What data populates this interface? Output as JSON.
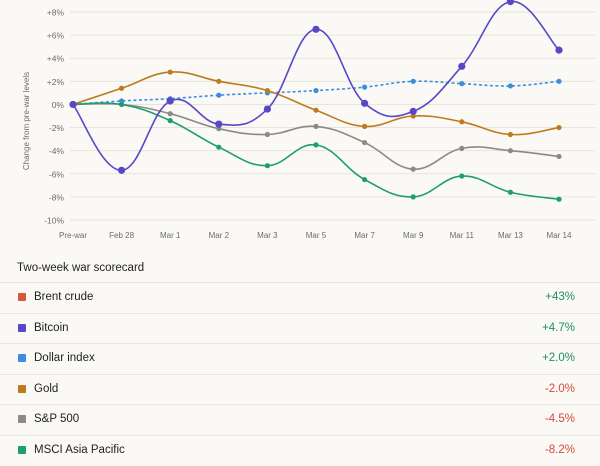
{
  "chart_data": {
    "type": "line",
    "ylabel": "Change from pre-war levels",
    "ylim": [
      -10,
      8
    ],
    "yticks": [
      8,
      6,
      4,
      2,
      0,
      -2,
      -4,
      -6,
      -8,
      -10
    ],
    "ytick_labels": [
      "+8%",
      "+6%",
      "+4%",
      "+2%",
      "0%",
      "-2%",
      "-4%",
      "-6%",
      "-8%",
      "-10%"
    ],
    "categories": [
      "Pre-war",
      "Feb 28",
      "Mar 1",
      "Mar 2",
      "Mar 3",
      "Mar 5",
      "Mar 7",
      "Mar 9",
      "Mar 11",
      "Mar 13",
      "Mar 14"
    ],
    "grid": true,
    "series": [
      {
        "name": "Bitcoin",
        "color": "#5b47c6",
        "style": "solid",
        "values": [
          0,
          -5.7,
          0.3,
          -1.7,
          -0.4,
          6.5,
          0.1,
          -0.6,
          3.3,
          8.9,
          4.7
        ]
      },
      {
        "name": "Dollar index",
        "color": "#3b8ede",
        "style": "dashed",
        "values": [
          0,
          0.3,
          0.5,
          0.8,
          1.0,
          1.2,
          1.5,
          2.0,
          1.8,
          1.6,
          2.0
        ]
      },
      {
        "name": "Gold",
        "color": "#c07a1e",
        "style": "solid",
        "values": [
          0,
          1.4,
          2.8,
          2.0,
          1.2,
          -0.5,
          -1.9,
          -1.0,
          -1.5,
          -2.6,
          -2.0
        ]
      },
      {
        "name": "S&P 500",
        "color": "#8c8a85",
        "style": "solid",
        "values": [
          0,
          0,
          -0.8,
          -2.1,
          -2.6,
          -1.9,
          -3.3,
          -5.6,
          -3.8,
          -4.0,
          -4.5
        ]
      },
      {
        "name": "MSCI Asia Pacific",
        "color": "#1e9e6e",
        "style": "solid",
        "values": [
          0,
          0,
          -1.4,
          -3.7,
          -5.3,
          -3.5,
          -6.5,
          -8.0,
          -6.2,
          -7.6,
          -8.2
        ]
      }
    ]
  },
  "scorecard": {
    "title": "Two-week war scorecard",
    "rows": [
      {
        "label": "Brent crude",
        "value": "+43%",
        "color": "#d9573b",
        "positive": true
      },
      {
        "label": "Bitcoin",
        "value": "+4.7%",
        "color": "#5b47c6",
        "positive": true
      },
      {
        "label": "Dollar index",
        "value": "+2.0%",
        "color": "#3b8ede",
        "positive": true
      },
      {
        "label": "Gold",
        "value": "-2.0%",
        "color": "#c07a1e",
        "positive": false
      },
      {
        "label": "S&P 500",
        "value": "-4.5%",
        "color": "#8c8a85",
        "positive": false
      },
      {
        "label": "MSCI Asia Pacific",
        "value": "-8.2%",
        "color": "#1e9e6e",
        "positive": false
      }
    ],
    "positive_color": "#1e8f5e",
    "negative_color": "#d9483b"
  }
}
